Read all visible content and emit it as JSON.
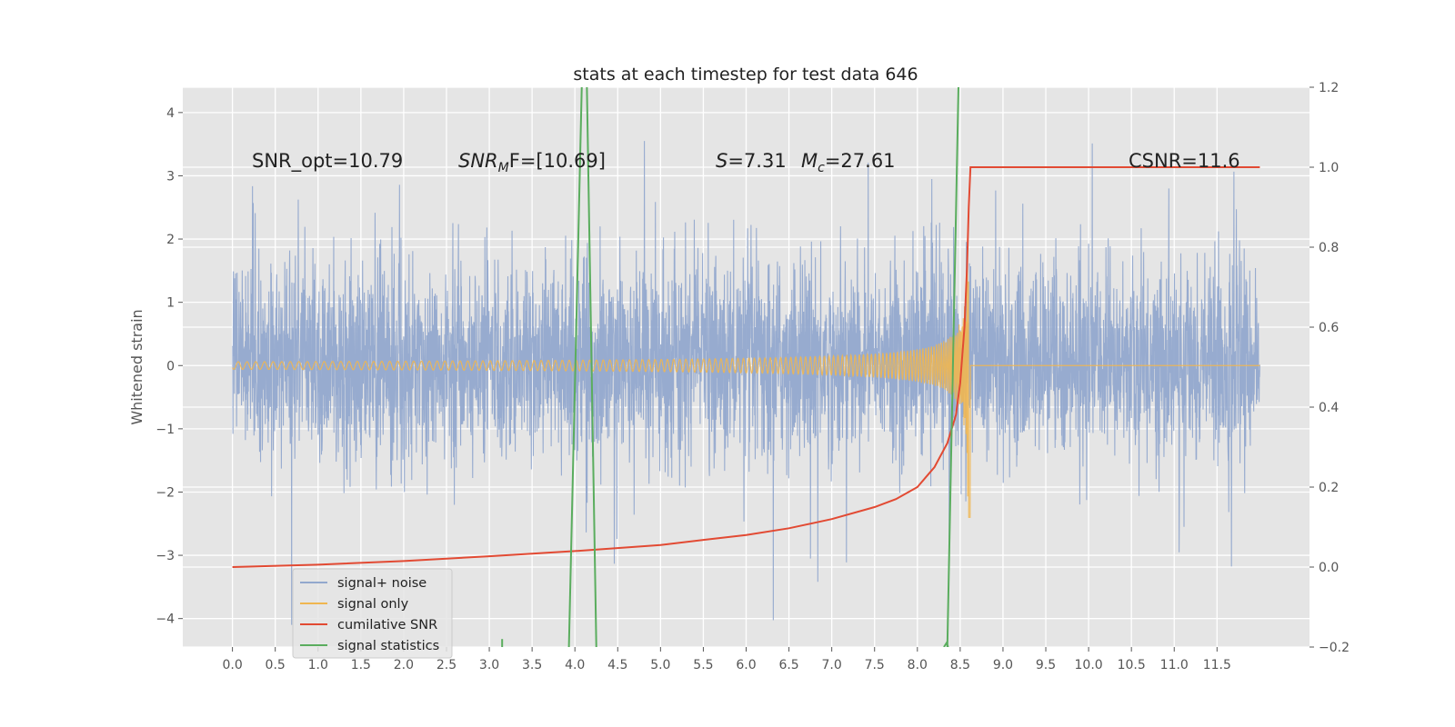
{
  "chart_data": {
    "type": "line",
    "title": "stats at each timestep for test data 646",
    "ylabel": "Whitened strain",
    "xlim": [
      -0.58,
      12.58
    ],
    "ylim": [
      -4.45,
      4.4
    ],
    "y2lim": [
      -0.2,
      1.2
    ],
    "grid": true,
    "legend_position": "lower-left",
    "xticks": [
      0.0,
      0.5,
      1.0,
      1.5,
      2.0,
      2.5,
      3.0,
      3.5,
      4.0,
      4.5,
      5.0,
      5.5,
      6.0,
      6.5,
      7.0,
      7.5,
      8.0,
      8.5,
      9.0,
      9.5,
      10.0,
      10.5,
      11.0,
      11.5
    ],
    "xtick_labels": [
      "0.0",
      "0.5",
      "1.0",
      "1.5",
      "2.0",
      "2.5",
      "3.0",
      "3.5",
      "4.0",
      "4.5",
      "5.0",
      "5.5",
      "6.0",
      "6.5",
      "7.0",
      "7.5",
      "8.0",
      "8.5",
      "9.0",
      "9.5",
      "10.0",
      "10.5",
      "11.0",
      "11.5"
    ],
    "yticks": [
      -4,
      -3,
      -2,
      -1,
      0,
      1,
      2,
      3,
      4
    ],
    "ytick_labels": [
      "−4",
      "−3",
      "−2",
      "−1",
      "0",
      "1",
      "2",
      "3",
      "4"
    ],
    "y2ticks": [
      -0.2,
      0.0,
      0.2,
      0.4,
      0.6,
      0.8,
      1.0,
      1.2
    ],
    "y2tick_labels": [
      "−0.2",
      "0.0",
      "0.2",
      "0.4",
      "0.6",
      "0.8",
      "1.0",
      "1.2"
    ],
    "annotations": [
      {
        "label": "SNR_opt=10.79"
      },
      {
        "label": "SNR",
        "sub": "M",
        "suffix": "F=[10.69]"
      },
      {
        "label": "S",
        "suffix": "=7.31"
      },
      {
        "label": "M",
        "sub": "c",
        "suffix": "=27.61"
      },
      {
        "label": "CSNR=11.6"
      }
    ],
    "series": [
      {
        "name": "signal+ noise",
        "color": "#92a8cd",
        "description_values": {
          "x_range": [
            0.0,
            12.0
          ],
          "typical_envelope": [
            -2.0,
            2.5
          ],
          "extremes": [
            -4.1,
            3.8
          ]
        }
      },
      {
        "name": "signal only",
        "color": "#f0b650",
        "description_values": {
          "x_range": [
            0.0,
            12.0
          ],
          "chirp_peak_x": 8.6,
          "peak_amplitude": [
            -2.4,
            2.5
          ]
        }
      },
      {
        "name": "cumilative SNR",
        "color": "#e24a33",
        "axis": "right",
        "points": [
          [
            0.0,
            0.0
          ],
          [
            1.0,
            0.006
          ],
          [
            2.0,
            0.015
          ],
          [
            3.0,
            0.027
          ],
          [
            4.0,
            0.04
          ],
          [
            5.0,
            0.055
          ],
          [
            5.5,
            0.068
          ],
          [
            6.0,
            0.08
          ],
          [
            6.5,
            0.097
          ],
          [
            7.0,
            0.12
          ],
          [
            7.5,
            0.15
          ],
          [
            7.75,
            0.17
          ],
          [
            8.0,
            0.2
          ],
          [
            8.2,
            0.25
          ],
          [
            8.35,
            0.31
          ],
          [
            8.45,
            0.38
          ],
          [
            8.5,
            0.46
          ],
          [
            8.55,
            0.6
          ],
          [
            8.58,
            0.75
          ],
          [
            8.6,
            0.9
          ],
          [
            8.62,
            1.0
          ],
          [
            12.0,
            1.0
          ]
        ]
      },
      {
        "name": "signal statistics",
        "color": "#5aad5e",
        "axis": "right",
        "segments": [
          [
            [
              3.93,
              -0.2
            ],
            [
              4.08,
              1.2
            ]
          ],
          [
            [
              4.14,
              1.2
            ],
            [
              4.25,
              -0.2
            ]
          ],
          [
            [
              3.15,
              -0.2
            ],
            [
              3.15,
              -0.18
            ]
          ],
          [
            [
              8.35,
              -0.2
            ],
            [
              8.48,
              1.2
            ]
          ],
          [
            [
              8.31,
              -0.2
            ],
            [
              8.34,
              -0.19
            ],
            [
              8.36,
              -0.2
            ]
          ]
        ]
      }
    ]
  }
}
